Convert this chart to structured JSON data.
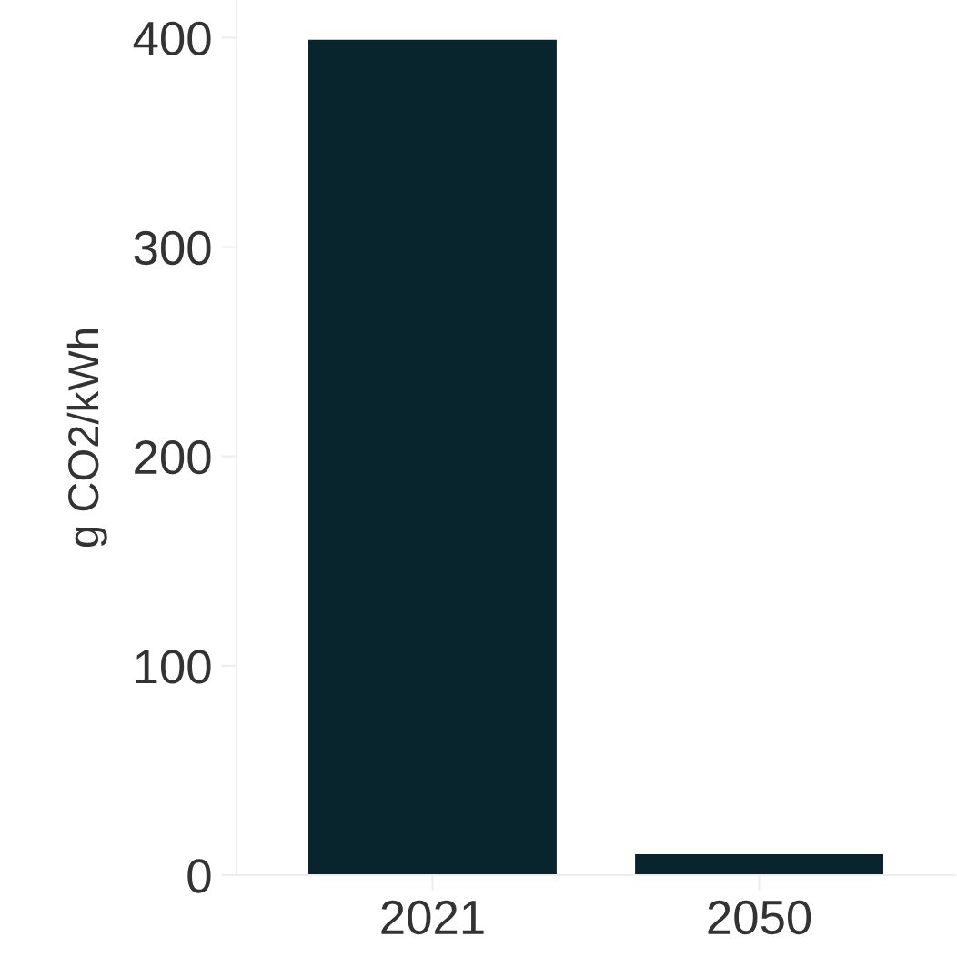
{
  "chart_data": {
    "type": "bar",
    "ylabel": "g CO2/kWh",
    "categories": [
      "2021",
      "2050"
    ],
    "values": [
      399,
      10
    ],
    "color": "#08252e",
    "ylim": [
      0,
      418
    ],
    "yticks": [
      0,
      100,
      200,
      300,
      400
    ],
    "grid": false
  }
}
